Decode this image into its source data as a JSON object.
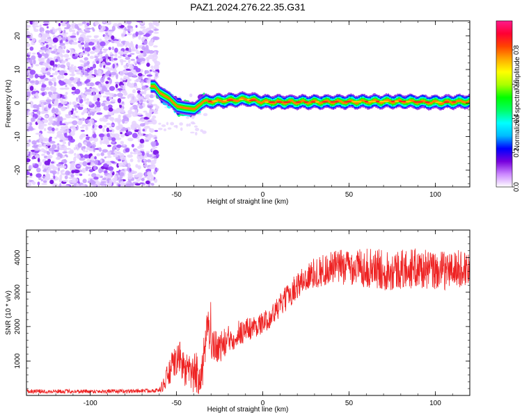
{
  "title": "PAZ1.2024.276.22.35.G31",
  "chart_data": [
    {
      "type": "heatmap",
      "xlabel": "Height of straight line (km)",
      "ylabel": "Frequency (Hz)",
      "xlim": [
        -137,
        120
      ],
      "ylim": [
        -25,
        24.5
      ],
      "xticks": [
        "-100",
        "-50",
        "0",
        "50",
        "100"
      ],
      "xtick_values": [
        -100,
        -50,
        0,
        50,
        100
      ],
      "yticks": [
        "20",
        "10",
        "0",
        "-10",
        "-20"
      ],
      "ytick_values": [
        20,
        10,
        0,
        -10,
        -20
      ],
      "noise_region": {
        "x_from": -137,
        "x_to": -63,
        "freq_from": -25,
        "freq_to": 24.5,
        "amplitude": 0.1
      },
      "transition_region": {
        "x_from": -65,
        "x_to": -35,
        "amplitude": 0.35
      },
      "signal_trace": [
        {
          "x": -63,
          "freq": 5
        },
        {
          "x": -60,
          "freq": 3
        },
        {
          "x": -55,
          "freq": 1.5
        },
        {
          "x": -50,
          "freq": -1
        },
        {
          "x": -45,
          "freq": -1.5
        },
        {
          "x": -40,
          "freq": -1.8
        },
        {
          "x": -35,
          "freq": 0.3
        },
        {
          "x": -30,
          "freq": 0.5
        },
        {
          "x": -20,
          "freq": 0.8
        },
        {
          "x": -10,
          "freq": 1.2
        },
        {
          "x": 0,
          "freq": 0.3
        },
        {
          "x": 20,
          "freq": 0.3
        },
        {
          "x": 50,
          "freq": 0.4
        },
        {
          "x": 80,
          "freq": 0.5
        },
        {
          "x": 100,
          "freq": 0.2
        },
        {
          "x": 120,
          "freq": 0.5
        }
      ],
      "colorbar": {
        "label": "Normalized spectral amplitude",
        "range": [
          0,
          0.97
        ],
        "ticks": [
          "0.0",
          "0.2",
          "0.4",
          "0.6",
          "0.8"
        ],
        "tick_values": [
          0,
          0.2,
          0.4,
          0.6,
          0.8
        ],
        "colormap": [
          "#ffffff",
          "#cc88ff",
          "#7700dd",
          "#0000ff",
          "#00bbff",
          "#00ffff",
          "#00ff66",
          "#00ff00",
          "#aaff00",
          "#ffff00",
          "#ffaa00",
          "#ff4400",
          "#ff0033",
          "#ff1a8c"
        ]
      }
    },
    {
      "type": "line",
      "xlabel": "Height of straight line (km)",
      "ylabel": "SNR (10 * v/v)",
      "xlim": [
        -137,
        120
      ],
      "ylim": [
        0,
        4800
      ],
      "xticks": [
        "-100",
        "-50",
        "0",
        "50",
        "100"
      ],
      "xtick_values": [
        -100,
        -50,
        0,
        50,
        100
      ],
      "yticks": [
        "1000",
        "2000",
        "3000",
        "4000"
      ],
      "ytick_values": [
        1000,
        2000,
        3000,
        4000
      ],
      "series": [
        {
          "color": "#ee2222",
          "envelope": [
            {
              "x": -137,
              "y": 120
            },
            {
              "x": -110,
              "y": 120
            },
            {
              "x": -80,
              "y": 120
            },
            {
              "x": -60,
              "y": 150
            },
            {
              "x": -57,
              "y": 350
            },
            {
              "x": -52,
              "y": 900
            },
            {
              "x": -48,
              "y": 1100
            },
            {
              "x": -45,
              "y": 700
            },
            {
              "x": -40,
              "y": 600
            },
            {
              "x": -35,
              "y": 700
            },
            {
              "x": -32,
              "y": 1900
            },
            {
              "x": -30,
              "y": 1500
            },
            {
              "x": -25,
              "y": 1400
            },
            {
              "x": -20,
              "y": 1600
            },
            {
              "x": -15,
              "y": 1800
            },
            {
              "x": -10,
              "y": 1900
            },
            {
              "x": -5,
              "y": 2000
            },
            {
              "x": 0,
              "y": 2100
            },
            {
              "x": 5,
              "y": 2300
            },
            {
              "x": 10,
              "y": 2600
            },
            {
              "x": 15,
              "y": 2900
            },
            {
              "x": 20,
              "y": 3200
            },
            {
              "x": 25,
              "y": 3400
            },
            {
              "x": 30,
              "y": 3550
            },
            {
              "x": 40,
              "y": 3700
            },
            {
              "x": 50,
              "y": 3750
            },
            {
              "x": 60,
              "y": 3700
            },
            {
              "x": 70,
              "y": 3650
            },
            {
              "x": 80,
              "y": 3650
            },
            {
              "x": 90,
              "y": 3700
            },
            {
              "x": 100,
              "y": 3600
            },
            {
              "x": 110,
              "y": 3650
            },
            {
              "x": 120,
              "y": 3700
            }
          ],
          "noise_amplitude": [
            {
              "x": -137,
              "y": 60
            },
            {
              "x": -60,
              "y": 60
            },
            {
              "x": -55,
              "y": 400
            },
            {
              "x": -45,
              "y": 500
            },
            {
              "x": -35,
              "y": 700
            },
            {
              "x": -30,
              "y": 500
            },
            {
              "x": 0,
              "y": 300
            },
            {
              "x": 20,
              "y": 400
            },
            {
              "x": 40,
              "y": 500
            },
            {
              "x": 70,
              "y": 600
            },
            {
              "x": 120,
              "y": 550
            }
          ]
        }
      ]
    }
  ]
}
